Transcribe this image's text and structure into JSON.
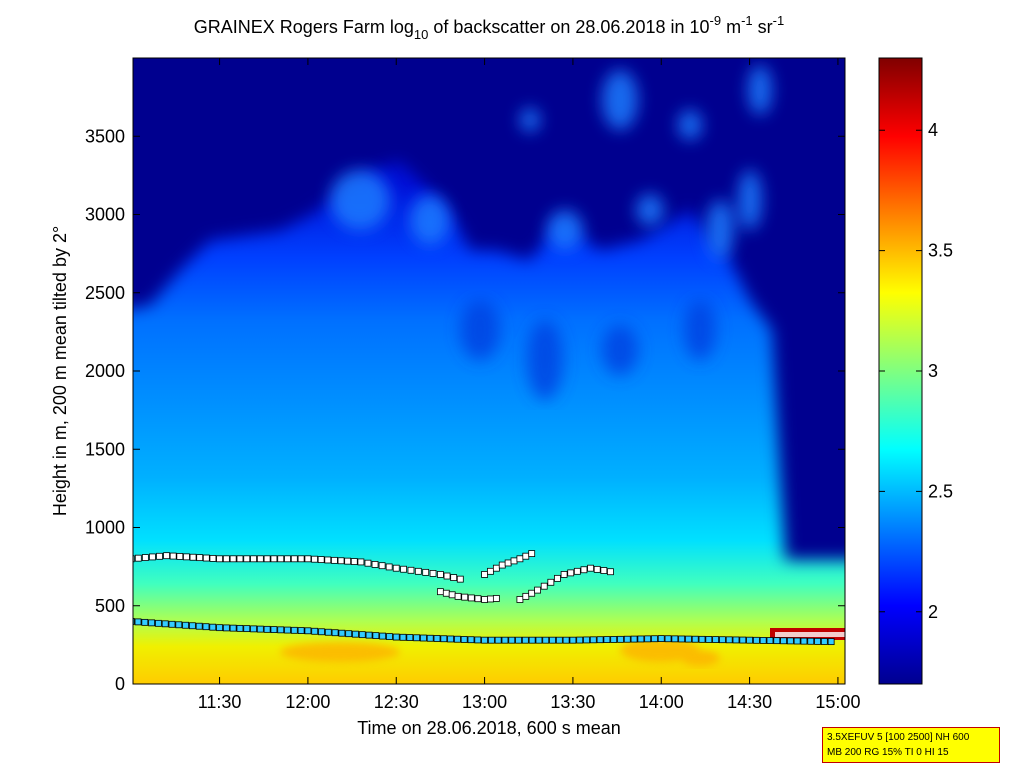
{
  "chart_data": {
    "type": "heatmap",
    "title": {
      "prefix": "GRAINEX Rogers Farm log",
      "sub": "10",
      "middle": " of backscatter on 28.06.2018 in 10",
      "sup1": "-9",
      "unit1": " m",
      "sup2": "-1",
      "unit2": " sr",
      "sup3": "-1"
    },
    "xlabel": "Time on 28.06.2018, 600 s mean",
    "ylabel": "Height in m, 200 m mean tilted by 2°",
    "x_ticks": [
      {
        "label": "11:30",
        "hour": 11.5
      },
      {
        "label": "12:00",
        "hour": 12.0
      },
      {
        "label": "12:30",
        "hour": 12.5
      },
      {
        "label": "13:00",
        "hour": 13.0
      },
      {
        "label": "13:30",
        "hour": 13.5
      },
      {
        "label": "14:00",
        "hour": 14.0
      },
      {
        "label": "14:30",
        "hour": 14.5
      },
      {
        "label": "15:00",
        "hour": 15.0
      }
    ],
    "x_range_hours": [
      11.01,
      15.04
    ],
    "y_ticks": [
      0,
      500,
      1000,
      1500,
      2000,
      2500,
      3000,
      3500
    ],
    "y_range": [
      0,
      4000
    ],
    "colorbar": {
      "ticks": [
        2,
        2.5,
        3,
        3.5,
        4
      ],
      "range": [
        1.7,
        4.3
      ],
      "colormap": [
        "#00008f",
        "#0000ff",
        "#0080ff",
        "#00ffff",
        "#80ff80",
        "#ffff00",
        "#ff8000",
        "#ff0000",
        "#800000"
      ]
    },
    "layers": [
      {
        "name": "lower layer",
        "points": [
          [
            11.0,
            400
          ],
          [
            11.5,
            360
          ],
          [
            12.0,
            340
          ],
          [
            12.5,
            300
          ],
          [
            13.0,
            280
          ],
          [
            13.5,
            280
          ],
          [
            14.0,
            290
          ],
          [
            14.5,
            280
          ],
          [
            15.0,
            270
          ]
        ]
      },
      {
        "name": "upper layer",
        "points": [
          [
            11.0,
            800
          ],
          [
            11.2,
            820
          ],
          [
            11.5,
            800
          ],
          [
            12.0,
            800
          ],
          [
            12.3,
            780
          ],
          [
            12.5,
            740
          ],
          [
            12.75,
            700
          ],
          [
            12.9,
            660
          ]
        ]
      },
      {
        "name": "upper layer segment 2",
        "points": [
          [
            12.75,
            590
          ],
          [
            12.85,
            560
          ],
          [
            13.0,
            540
          ],
          [
            13.1,
            550
          ]
        ]
      },
      {
        "name": "upper layer segment 3",
        "points": [
          [
            13.2,
            540
          ],
          [
            13.3,
            600
          ],
          [
            13.45,
            700
          ],
          [
            13.6,
            740
          ],
          [
            13.75,
            710
          ]
        ]
      },
      {
        "name": "upper layer segment 4",
        "points": [
          [
            13.0,
            700
          ],
          [
            13.1,
            760
          ],
          [
            13.2,
            800
          ],
          [
            13.3,
            850
          ]
        ]
      }
    ],
    "grid": false,
    "legend": "none"
  },
  "param_box": {
    "line1": "3.5XEFUV 5 [100 2500] NH 600",
    "line2": "MB 200 RG 15% TI 0 HI 15"
  }
}
